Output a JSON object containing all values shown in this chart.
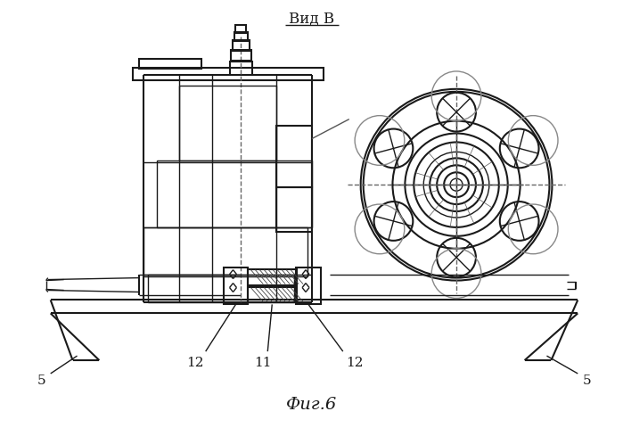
{
  "title": "Вид В",
  "caption": "Фиг.6",
  "bg_color": "#ffffff",
  "line_color": "#1a1a1a",
  "figsize": [
    6.99,
    4.8
  ],
  "dpi": 100
}
